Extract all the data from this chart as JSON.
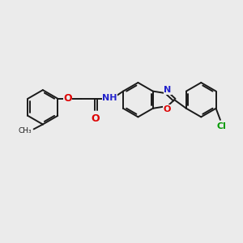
{
  "background_color": "#ebebeb",
  "bond_color": "#1a1a1a",
  "atom_colors": {
    "O": "#dd0000",
    "N": "#2222cc",
    "C": "#1a1a1a",
    "H": "#888888",
    "Cl": "#009900"
  },
  "figsize": [
    3.0,
    3.0
  ],
  "dpi": 100,
  "lw": 1.4,
  "fs": 8.0
}
